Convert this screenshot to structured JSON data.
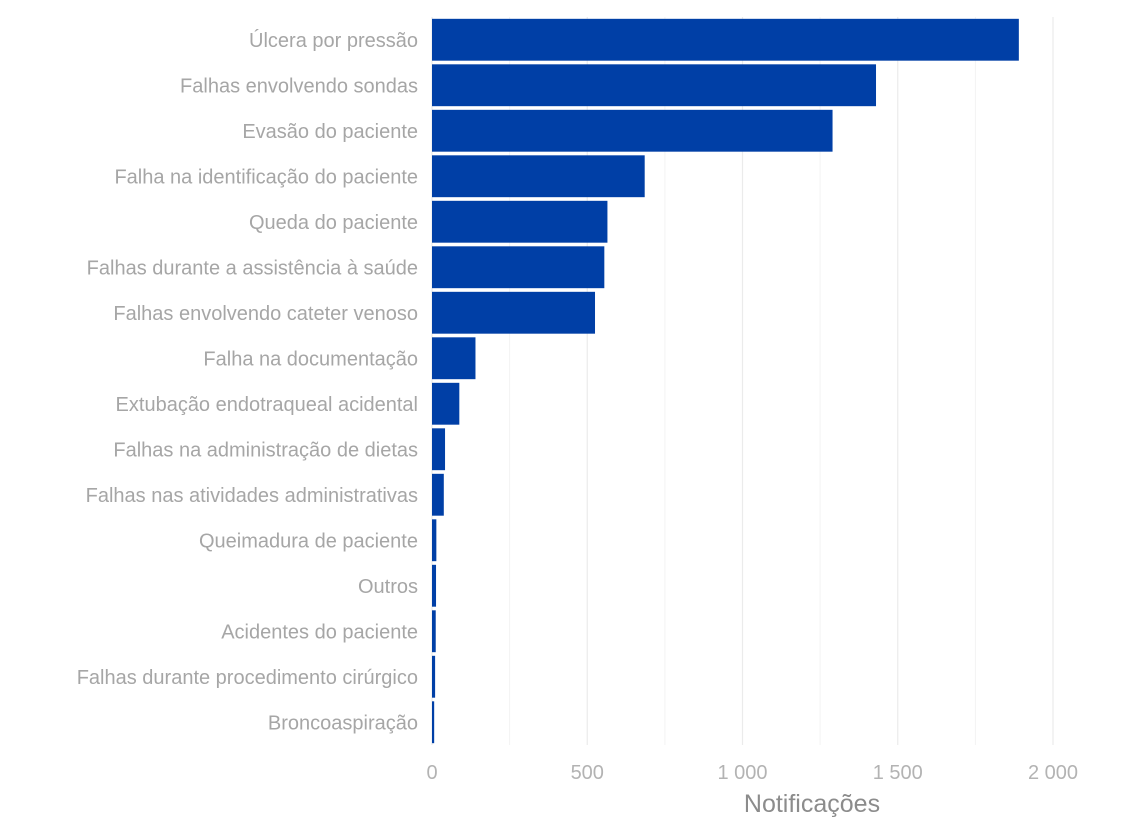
{
  "chart_data": {
    "type": "bar",
    "orientation": "horizontal",
    "xlabel": "Notificações",
    "ylabel": "",
    "xlim": [
      0,
      2150
    ],
    "xticks": [
      0,
      500,
      1000,
      1500,
      2000
    ],
    "xtick_labels": [
      "0",
      "500",
      "1 000",
      "1 500",
      "2 000"
    ],
    "grid": true,
    "bar_color": "#003fa6",
    "categories": [
      "Úlcera por pressão",
      "Falhas envolvendo sondas",
      "Evasão do paciente",
      "Falha na identificação do paciente",
      "Queda do paciente",
      "Falhas durante a assistência à saúde",
      "Falhas envolvendo cateter venoso",
      "Falha na documentação",
      "Extubação endotraqueal acidental",
      "Falhas na administração de dietas",
      "Falhas nas atividades administrativas",
      "Queimadura de paciente",
      "Outros",
      "Acidentes do paciente",
      "Falhas durante procedimento cirúrgico",
      "Broncoaspiração"
    ],
    "values": [
      1890,
      1430,
      1290,
      685,
      565,
      555,
      525,
      140,
      88,
      42,
      38,
      14,
      13,
      12,
      10,
      7
    ]
  }
}
